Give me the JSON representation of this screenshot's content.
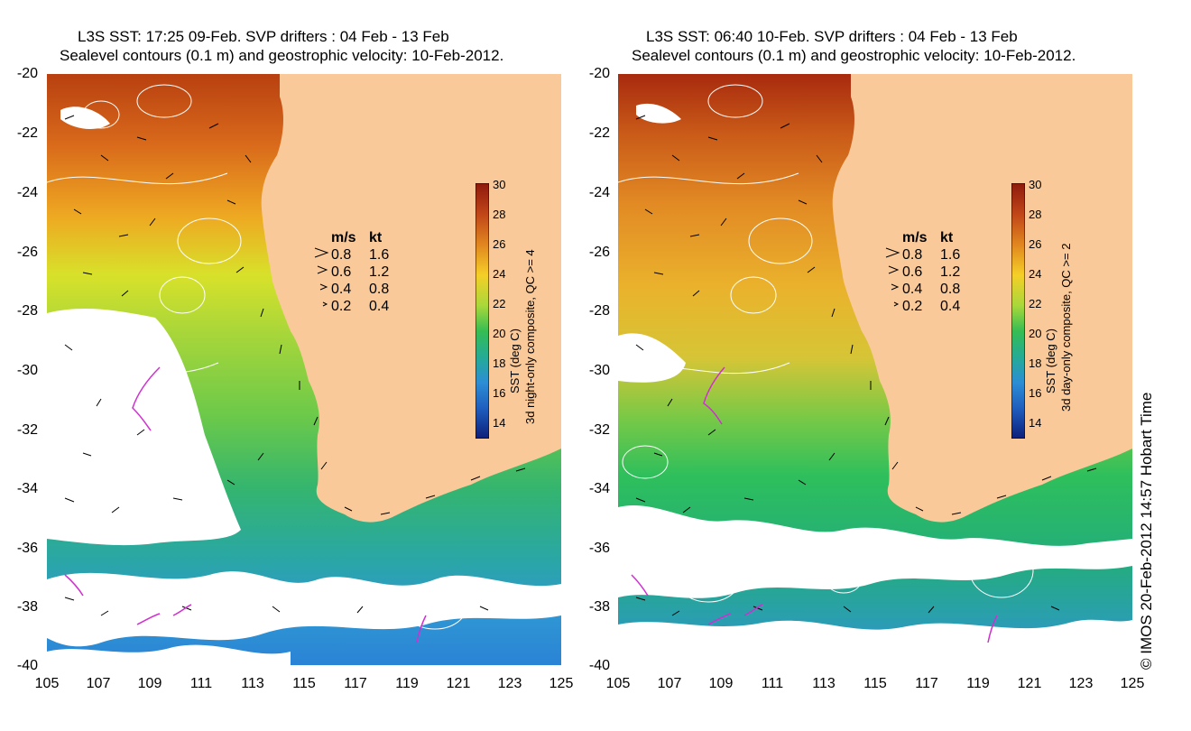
{
  "panels": [
    {
      "title_line1": "L3S SST: 17:25 09-Feb. SVP drifters : 04 Feb - 13 Feb",
      "title_line2": "Sealevel contours (0.1 m) and geostrophic velocity: 10-Feb-2012.",
      "colorbar_label_line1": "SST (deg C)",
      "colorbar_label_line2": "3d night-only composite, QC >= 4"
    },
    {
      "title_line1": "L3S SST: 06:40 10-Feb. SVP drifters : 04 Feb - 13 Feb",
      "title_line2": "Sealevel contours (0.1 m) and geostrophic velocity: 10-Feb-2012.",
      "colorbar_label_line1": "SST (deg C)",
      "colorbar_label_line2": "3d day-only composite, QC >= 2"
    }
  ],
  "axes": {
    "lat_ticks": [
      "-20",
      "-22",
      "-24",
      "-26",
      "-28",
      "-30",
      "-32",
      "-34",
      "-36",
      "-38",
      "-40"
    ],
    "lon_ticks": [
      "105",
      "107",
      "109",
      "111",
      "113",
      "115",
      "117",
      "119",
      "121",
      "123",
      "125"
    ],
    "lat_range": [
      -40,
      -20
    ],
    "lon_range": [
      105,
      125
    ]
  },
  "velocity_legend": {
    "header_ms": "m/s",
    "header_kt": "kt",
    "rows": [
      {
        "ms": "0.8",
        "kt": "1.6"
      },
      {
        "ms": "0.6",
        "kt": "1.2"
      },
      {
        "ms": "0.4",
        "kt": "0.8"
      },
      {
        "ms": "0.2",
        "kt": "0.4"
      }
    ]
  },
  "colorbar": {
    "ticks": [
      "30",
      "28",
      "26",
      "24",
      "22",
      "20",
      "18",
      "16",
      "14"
    ],
    "range": [
      13,
      30
    ]
  },
  "credit": "© IMOS 20-Feb-2012 14:57 Hobart Time",
  "colors": {
    "land": "#f9c99a",
    "ocean_cloud": "#ffffff",
    "contour": "#ffffff",
    "arrow": "#000000",
    "drifter": "#d12fd1"
  }
}
